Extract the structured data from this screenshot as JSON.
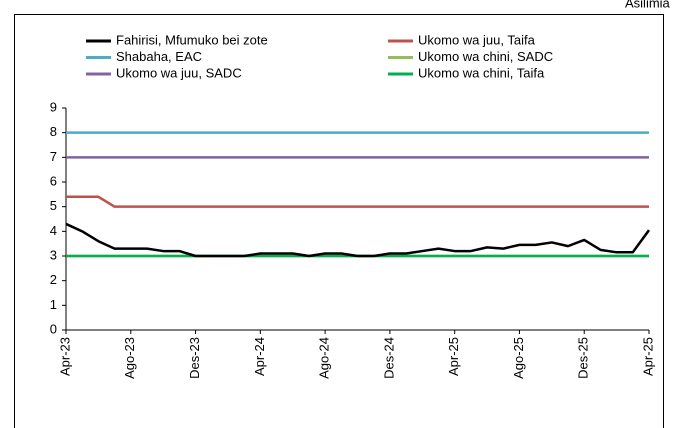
{
  "chart_data": {
    "type": "line",
    "unit_label": "Asilimia",
    "categories": [
      "Apr-23",
      null,
      null,
      null,
      "Ago-23",
      null,
      null,
      null,
      "Des-23",
      null,
      null,
      null,
      "Apr-24",
      null,
      null,
      null,
      "Ago-24",
      null,
      null,
      null,
      "Des-24",
      null,
      null,
      null,
      "Apr-25",
      null,
      null,
      null,
      "Ago-25",
      null,
      null,
      null,
      "Des-25",
      null,
      null,
      null,
      "Apr-25"
    ],
    "series": [
      {
        "name": "Fahirisi, Mfumuko bei zote",
        "color": "#000000",
        "values": [
          4.3,
          4.0,
          3.6,
          3.3,
          3.3,
          3.3,
          3.2,
          3.2,
          3.0,
          3.0,
          3.0,
          3.0,
          3.1,
          3.1,
          3.1,
          3.0,
          3.1,
          3.1,
          3.0,
          3.0,
          3.1,
          3.1,
          3.2,
          3.3,
          3.2,
          3.2,
          3.35,
          3.3,
          3.45,
          3.45,
          3.55,
          3.4,
          3.65,
          3.25,
          3.15,
          3.15,
          4.05
        ]
      },
      {
        "name": "Ukomo wa juu, Taifa",
        "color": "#c0504d",
        "values": [
          5.4,
          5.4,
          5.4,
          5.0,
          5.0,
          5.0,
          5.0,
          5.0,
          5.0,
          5.0,
          5.0,
          5.0,
          5.0,
          5.0,
          5.0,
          5.0,
          5.0,
          5.0,
          5.0,
          5.0,
          5.0,
          5.0,
          5.0,
          5.0,
          5.0,
          5.0,
          5.0,
          5.0,
          5.0,
          5.0,
          5.0,
          5.0,
          5.0,
          5.0,
          5.0,
          5.0,
          5.0
        ]
      },
      {
        "name": "Shabaha, EAC",
        "color": "#4bacc6",
        "values": [
          8,
          8,
          8,
          8,
          8,
          8,
          8,
          8,
          8,
          8,
          8,
          8,
          8,
          8,
          8,
          8,
          8,
          8,
          8,
          8,
          8,
          8,
          8,
          8,
          8,
          8,
          8,
          8,
          8,
          8,
          8,
          8,
          8,
          8,
          8,
          8,
          8
        ]
      },
      {
        "name": "Ukomo wa chini, SADC",
        "color": "#9bbb59",
        "values": [
          3,
          3,
          3,
          3,
          3,
          3,
          3,
          3,
          3,
          3,
          3,
          3,
          3,
          3,
          3,
          3,
          3,
          3,
          3,
          3,
          3,
          3,
          3,
          3,
          3,
          3,
          3,
          3,
          3,
          3,
          3,
          3,
          3,
          3,
          3,
          3,
          3
        ]
      },
      {
        "name": "Ukomo wa juu, SADC",
        "color": "#8064a2",
        "values": [
          7,
          7,
          7,
          7,
          7,
          7,
          7,
          7,
          7,
          7,
          7,
          7,
          7,
          7,
          7,
          7,
          7,
          7,
          7,
          7,
          7,
          7,
          7,
          7,
          7,
          7,
          7,
          7,
          7,
          7,
          7,
          7,
          7,
          7,
          7,
          7,
          7
        ]
      },
      {
        "name": "Ukomo wa chini, Taifa",
        "color": "#00b050",
        "values": [
          3,
          3,
          3,
          3,
          3,
          3,
          3,
          3,
          3,
          3,
          3,
          3,
          3,
          3,
          3,
          3,
          3,
          3,
          3,
          3,
          3,
          3,
          3,
          3,
          3,
          3,
          3,
          3,
          3,
          3,
          3,
          3,
          3,
          3,
          3,
          3,
          3
        ]
      }
    ],
    "ylim": [
      0,
      9
    ],
    "yticks": [
      0,
      1,
      2,
      3,
      4,
      5,
      6,
      7,
      8,
      9
    ],
    "grid": false,
    "legend": "top"
  }
}
